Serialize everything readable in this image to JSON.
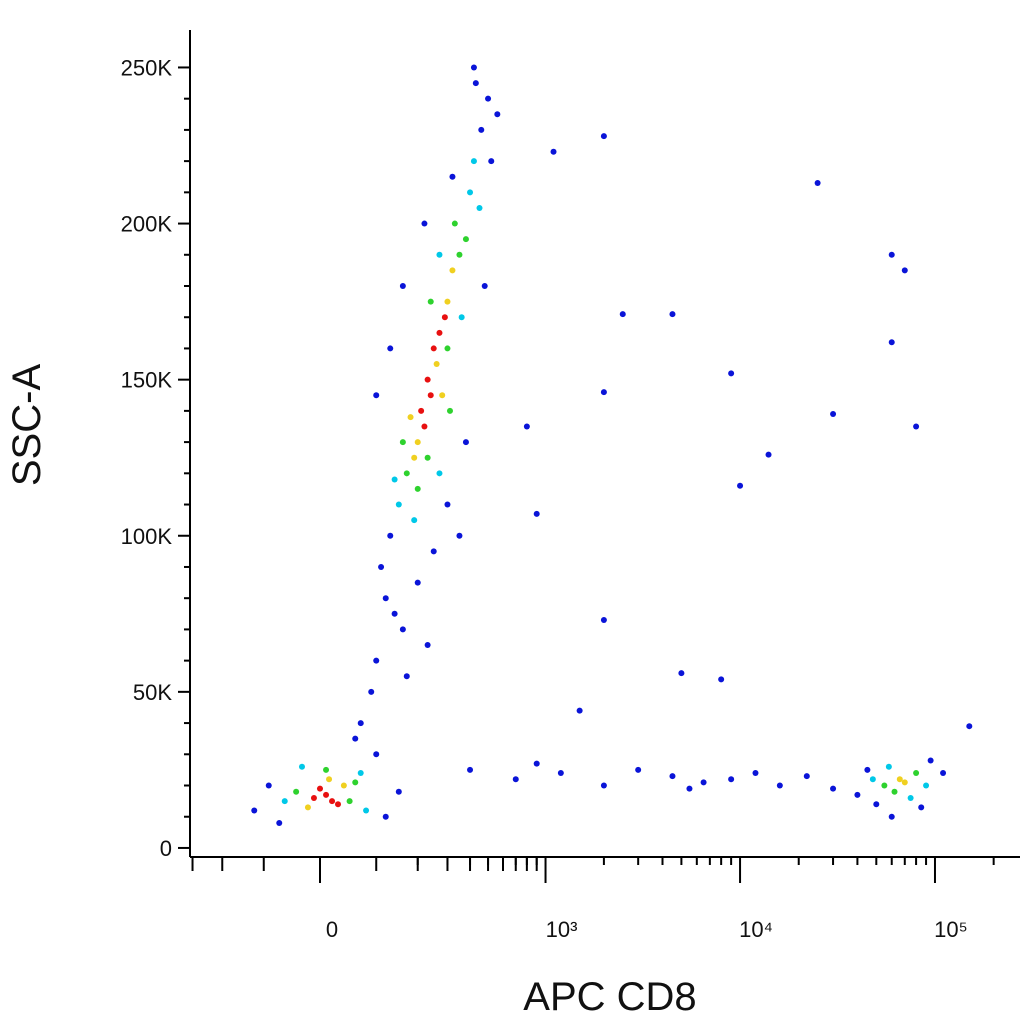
{
  "chart_data": {
    "type": "scatter",
    "x_label": "APC CD8",
    "y_label": "SSC-A",
    "xscale": "biexponential",
    "xlim": [
      -310,
      273000
    ],
    "ylim": [
      -2900,
      262000
    ],
    "xticks": [
      0,
      {
        "value": 1000,
        "label": "10³"
      },
      {
        "value": 10000,
        "label": "10⁴"
      },
      {
        "value": 100000,
        "label": "10⁵"
      }
    ],
    "yticks": [
      0,
      {
        "value": 50000,
        "label": "50K"
      },
      {
        "value": 100000,
        "label": "100K"
      },
      {
        "value": 150000,
        "label": "150K"
      },
      {
        "value": 200000,
        "label": "200K"
      },
      {
        "value": 250000,
        "label": "250K"
      }
    ],
    "series": [
      {
        "color": "#0a14d8",
        "x": [
          130,
          460,
          500,
          430,
          110,
          120,
          160,
          100,
          140,
          90,
          70,
          60,
          200,
          250,
          520,
          480,
          300,
          380,
          560,
          420,
          100,
          130,
          160,
          220,
          320,
          350,
          230,
          170,
          -120,
          -90,
          120,
          100,
          -70,
          150,
          400,
          700,
          1200,
          2000,
          3000,
          4500,
          6500,
          9000,
          12000,
          16000,
          22000,
          30000,
          40000,
          900,
          5500,
          50000,
          85000,
          95000,
          45000,
          110000,
          60000,
          2000,
          1100,
          25000,
          60000,
          70000,
          2500,
          4500,
          9000,
          2000,
          30000,
          14000,
          10000,
          900,
          800,
          2000,
          5000,
          8000,
          1500,
          80000,
          60000,
          150000
        ],
        "values": [
          100000,
          230000,
          240000,
          245000,
          90000,
          80000,
          70000,
          60000,
          75000,
          50000,
          40000,
          35000,
          85000,
          95000,
          220000,
          180000,
          110000,
          130000,
          235000,
          250000,
          145000,
          160000,
          180000,
          200000,
          215000,
          100000,
          65000,
          55000,
          12000,
          20000,
          10000,
          30000,
          8000,
          18000,
          25000,
          22000,
          24000,
          20000,
          25000,
          23000,
          21000,
          22000,
          24000,
          20000,
          23000,
          19000,
          17000,
          27000,
          19000,
          14000,
          13000,
          28000,
          25000,
          24000,
          10000,
          228000,
          223000,
          213000,
          190000,
          185000,
          171000,
          171000,
          152000,
          146000,
          139000,
          126000,
          116000,
          107000,
          135000,
          73000,
          56000,
          54000,
          44000,
          135000,
          162000,
          39000
        ]
      },
      {
        "color": "#00c8e8",
        "x": [
          150,
          400,
          420,
          140,
          270,
          360,
          190,
          450,
          270,
          -60,
          70,
          -30,
          80,
          48000,
          90000,
          58000,
          75000
        ],
        "values": [
          110000,
          210000,
          220000,
          118000,
          120000,
          170000,
          105000,
          205000,
          190000,
          15000,
          24000,
          26000,
          12000,
          22000,
          20000,
          26000,
          16000
        ]
      },
      {
        "color": "#2ed22e",
        "x": [
          170,
          350,
          330,
          300,
          200,
          160,
          380,
          240,
          230,
          310,
          -40,
          50,
          10,
          60,
          55000,
          80000,
          62000
        ],
        "values": [
          120000,
          190000,
          200000,
          160000,
          115000,
          130000,
          195000,
          175000,
          125000,
          140000,
          18000,
          15000,
          25000,
          21000,
          20000,
          24000,
          18000
        ]
      },
      {
        "color": "#f0d020",
        "x": [
          200,
          300,
          260,
          190,
          320,
          280,
          180,
          40,
          -20,
          15,
          66000,
          70000
        ],
        "values": [
          130000,
          175000,
          155000,
          125000,
          185000,
          145000,
          138000,
          20000,
          13000,
          22000,
          22000,
          21000
        ]
      },
      {
        "color": "#e81010",
        "x": [
          230,
          250,
          210,
          270,
          220,
          290,
          240,
          10,
          20,
          0,
          30,
          -10
        ],
        "values": [
          150000,
          160000,
          140000,
          165000,
          135000,
          170000,
          145000,
          17000,
          15000,
          19000,
          14000,
          16000
        ]
      }
    ]
  }
}
